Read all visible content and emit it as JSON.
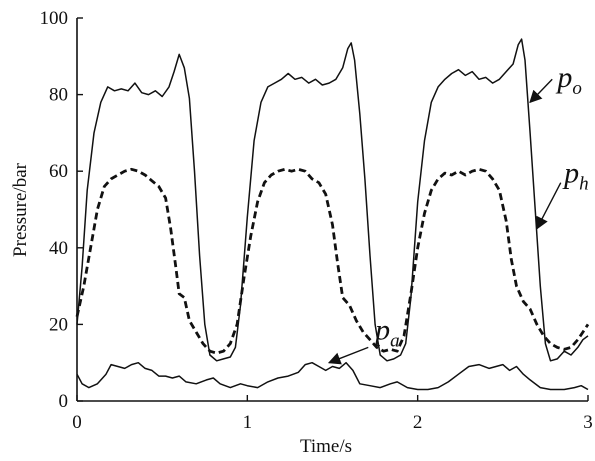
{
  "chart_data": {
    "type": "line",
    "xlabel": "Time/s",
    "ylabel": "Pressure/bar",
    "xlim": [
      0,
      3
    ],
    "ylim": [
      0,
      100
    ],
    "xticks": [
      "0",
      "1",
      "2",
      "3"
    ],
    "yticks": [
      "0",
      "20",
      "40",
      "60",
      "80",
      "100"
    ],
    "grid": false,
    "series": [
      {
        "name": "p_o",
        "label_main": "p",
        "label_sub": "o",
        "style": "solid",
        "points": [
          [
            0.0,
            20
          ],
          [
            0.03,
            35
          ],
          [
            0.06,
            55
          ],
          [
            0.1,
            70
          ],
          [
            0.14,
            78
          ],
          [
            0.18,
            82
          ],
          [
            0.22,
            81
          ],
          [
            0.26,
            81.5
          ],
          [
            0.3,
            81
          ],
          [
            0.34,
            83
          ],
          [
            0.38,
            80.5
          ],
          [
            0.42,
            80
          ],
          [
            0.46,
            81
          ],
          [
            0.5,
            79.5
          ],
          [
            0.54,
            82
          ],
          [
            0.57,
            86
          ],
          [
            0.6,
            90.5
          ],
          [
            0.63,
            87
          ],
          [
            0.66,
            79
          ],
          [
            0.69,
            60
          ],
          [
            0.72,
            38
          ],
          [
            0.75,
            20
          ],
          [
            0.78,
            12
          ],
          [
            0.82,
            10.5
          ],
          [
            0.86,
            11
          ],
          [
            0.9,
            11.5
          ],
          [
            0.93,
            14
          ],
          [
            0.96,
            25
          ],
          [
            1.0,
            48
          ],
          [
            1.04,
            68
          ],
          [
            1.08,
            78
          ],
          [
            1.12,
            82
          ],
          [
            1.16,
            83
          ],
          [
            1.2,
            84
          ],
          [
            1.24,
            85.5
          ],
          [
            1.28,
            84
          ],
          [
            1.32,
            84.5
          ],
          [
            1.36,
            83
          ],
          [
            1.4,
            84
          ],
          [
            1.44,
            82.5
          ],
          [
            1.48,
            83
          ],
          [
            1.52,
            84
          ],
          [
            1.56,
            87
          ],
          [
            1.59,
            92
          ],
          [
            1.61,
            93.5
          ],
          [
            1.63,
            89
          ],
          [
            1.66,
            75
          ],
          [
            1.69,
            58
          ],
          [
            1.72,
            38
          ],
          [
            1.75,
            20
          ],
          [
            1.78,
            12
          ],
          [
            1.82,
            10.5
          ],
          [
            1.86,
            11
          ],
          [
            1.9,
            12
          ],
          [
            1.93,
            15
          ],
          [
            1.96,
            27
          ],
          [
            2.0,
            52
          ],
          [
            2.04,
            68
          ],
          [
            2.08,
            78
          ],
          [
            2.12,
            82
          ],
          [
            2.16,
            84
          ],
          [
            2.2,
            85.5
          ],
          [
            2.24,
            86.5
          ],
          [
            2.28,
            85
          ],
          [
            2.32,
            86
          ],
          [
            2.36,
            84
          ],
          [
            2.4,
            84.5
          ],
          [
            2.44,
            83
          ],
          [
            2.48,
            84
          ],
          [
            2.52,
            86
          ],
          [
            2.56,
            88
          ],
          [
            2.59,
            93
          ],
          [
            2.61,
            94.5
          ],
          [
            2.63,
            89
          ],
          [
            2.66,
            70
          ],
          [
            2.69,
            50
          ],
          [
            2.72,
            30
          ],
          [
            2.75,
            15
          ],
          [
            2.78,
            10.5
          ],
          [
            2.82,
            11
          ],
          [
            2.86,
            13
          ],
          [
            2.9,
            12
          ],
          [
            2.94,
            14
          ],
          [
            2.97,
            16
          ],
          [
            3.0,
            17
          ]
        ]
      },
      {
        "name": "p_h",
        "label_main": "p",
        "label_sub": "h",
        "style": "dashed",
        "points": [
          [
            0.0,
            22
          ],
          [
            0.04,
            30
          ],
          [
            0.08,
            40
          ],
          [
            0.12,
            50
          ],
          [
            0.16,
            56
          ],
          [
            0.2,
            58
          ],
          [
            0.24,
            59
          ],
          [
            0.28,
            60
          ],
          [
            0.32,
            60.5
          ],
          [
            0.36,
            60
          ],
          [
            0.4,
            59
          ],
          [
            0.44,
            57.5
          ],
          [
            0.48,
            56
          ],
          [
            0.52,
            53
          ],
          [
            0.55,
            45
          ],
          [
            0.58,
            35
          ],
          [
            0.6,
            28
          ],
          [
            0.63,
            27
          ],
          [
            0.66,
            21
          ],
          [
            0.7,
            18
          ],
          [
            0.74,
            15
          ],
          [
            0.78,
            13
          ],
          [
            0.82,
            12.5
          ],
          [
            0.86,
            13
          ],
          [
            0.9,
            15
          ],
          [
            0.94,
            20
          ],
          [
            0.98,
            32
          ],
          [
            1.02,
            43
          ],
          [
            1.06,
            52
          ],
          [
            1.1,
            57
          ],
          [
            1.14,
            59
          ],
          [
            1.18,
            60
          ],
          [
            1.22,
            60.5
          ],
          [
            1.26,
            60
          ],
          [
            1.3,
            60.5
          ],
          [
            1.34,
            60
          ],
          [
            1.38,
            58
          ],
          [
            1.42,
            57
          ],
          [
            1.46,
            54
          ],
          [
            1.5,
            46
          ],
          [
            1.53,
            36
          ],
          [
            1.56,
            27
          ],
          [
            1.6,
            25
          ],
          [
            1.64,
            21
          ],
          [
            1.68,
            18
          ],
          [
            1.72,
            16
          ],
          [
            1.76,
            14
          ],
          [
            1.8,
            13
          ],
          [
            1.84,
            13.5
          ],
          [
            1.88,
            13
          ],
          [
            1.92,
            17
          ],
          [
            1.96,
            28
          ],
          [
            2.0,
            40
          ],
          [
            2.04,
            49
          ],
          [
            2.08,
            55
          ],
          [
            2.12,
            58
          ],
          [
            2.16,
            59.5
          ],
          [
            2.2,
            59
          ],
          [
            2.24,
            60
          ],
          [
            2.28,
            59
          ],
          [
            2.32,
            60
          ],
          [
            2.36,
            60.5
          ],
          [
            2.4,
            60
          ],
          [
            2.44,
            58
          ],
          [
            2.48,
            55
          ],
          [
            2.52,
            47
          ],
          [
            2.55,
            37
          ],
          [
            2.58,
            30
          ],
          [
            2.62,
            26
          ],
          [
            2.66,
            24
          ],
          [
            2.7,
            20
          ],
          [
            2.74,
            17
          ],
          [
            2.78,
            15
          ],
          [
            2.82,
            14
          ],
          [
            2.86,
            13.5
          ],
          [
            2.9,
            14
          ],
          [
            2.94,
            16
          ],
          [
            2.97,
            18
          ],
          [
            3.0,
            20
          ]
        ]
      },
      {
        "name": "p_a",
        "label_main": "p",
        "label_sub": "a",
        "style": "solid",
        "points": [
          [
            0.0,
            7
          ],
          [
            0.03,
            4.5
          ],
          [
            0.07,
            3.5
          ],
          [
            0.12,
            4.5
          ],
          [
            0.17,
            7
          ],
          [
            0.2,
            9.5
          ],
          [
            0.24,
            9
          ],
          [
            0.28,
            8.5
          ],
          [
            0.32,
            9.5
          ],
          [
            0.36,
            10
          ],
          [
            0.4,
            8.5
          ],
          [
            0.44,
            8
          ],
          [
            0.48,
            6.5
          ],
          [
            0.52,
            6.5
          ],
          [
            0.56,
            6
          ],
          [
            0.6,
            6.5
          ],
          [
            0.64,
            5
          ],
          [
            0.7,
            4.5
          ],
          [
            0.76,
            5.5
          ],
          [
            0.8,
            6
          ],
          [
            0.84,
            4.5
          ],
          [
            0.9,
            3.5
          ],
          [
            0.96,
            4.5
          ],
          [
            1.0,
            4
          ],
          [
            1.06,
            3.5
          ],
          [
            1.12,
            5
          ],
          [
            1.18,
            6
          ],
          [
            1.24,
            6.5
          ],
          [
            1.3,
            7.5
          ],
          [
            1.34,
            9.5
          ],
          [
            1.38,
            10
          ],
          [
            1.42,
            9
          ],
          [
            1.46,
            8
          ],
          [
            1.5,
            9
          ],
          [
            1.54,
            8.5
          ],
          [
            1.58,
            10
          ],
          [
            1.62,
            8
          ],
          [
            1.66,
            4.5
          ],
          [
            1.72,
            4
          ],
          [
            1.78,
            3.5
          ],
          [
            1.84,
            4.5
          ],
          [
            1.88,
            5
          ],
          [
            1.94,
            3.5
          ],
          [
            2.0,
            3
          ],
          [
            2.06,
            3
          ],
          [
            2.12,
            3.5
          ],
          [
            2.18,
            5
          ],
          [
            2.24,
            7
          ],
          [
            2.3,
            9
          ],
          [
            2.36,
            9.5
          ],
          [
            2.42,
            8.5
          ],
          [
            2.46,
            9
          ],
          [
            2.5,
            9.5
          ],
          [
            2.54,
            8
          ],
          [
            2.58,
            9
          ],
          [
            2.62,
            7
          ],
          [
            2.66,
            5.5
          ],
          [
            2.72,
            3.5
          ],
          [
            2.78,
            3
          ],
          [
            2.86,
            3
          ],
          [
            2.92,
            3.5
          ],
          [
            2.96,
            4
          ],
          [
            3.0,
            3
          ]
        ]
      }
    ]
  }
}
